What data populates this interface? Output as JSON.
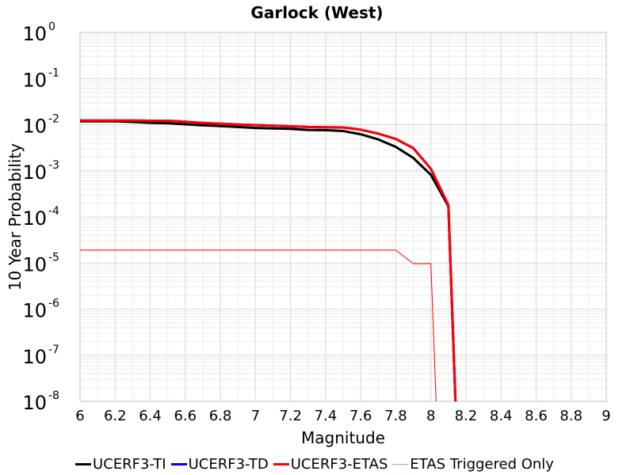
{
  "chart_data": {
    "type": "line",
    "title": "Garlock (West)",
    "xlabel": "Magnitude",
    "ylabel": "10 Year Probability",
    "xlim": [
      6,
      9
    ],
    "ylim_log10": [
      -8,
      0
    ],
    "yscale": "log",
    "grid": true,
    "legend_position": "bottom",
    "x_ticks": [
      "6",
      "6.2",
      "6.4",
      "6.6",
      "6.8",
      "7",
      "7.2",
      "7.4",
      "7.6",
      "7.8",
      "8",
      "8.2",
      "8.4",
      "8.6",
      "8.8",
      "9"
    ],
    "y_tick_exponents": [
      "0",
      "-1",
      "-2",
      "-3",
      "-4",
      "-5",
      "-6",
      "-7",
      "-8"
    ],
    "y_tick_base": "10",
    "series": [
      {
        "name": "UCERF3-TI",
        "color": "#000000",
        "width": 3,
        "points": [
          [
            6.0,
            0.0118
          ],
          [
            6.1,
            0.0118
          ],
          [
            6.2,
            0.0118
          ],
          [
            6.3,
            0.0115
          ],
          [
            6.4,
            0.011
          ],
          [
            6.5,
            0.0108
          ],
          [
            6.6,
            0.0102
          ],
          [
            6.7,
            0.0097
          ],
          [
            6.8,
            0.0093
          ],
          [
            6.9,
            0.0089
          ],
          [
            7.0,
            0.0085
          ],
          [
            7.1,
            0.0083
          ],
          [
            7.2,
            0.0081
          ],
          [
            7.3,
            0.0077
          ],
          [
            7.4,
            0.0076
          ],
          [
            7.5,
            0.0073
          ],
          [
            7.6,
            0.0062
          ],
          [
            7.7,
            0.0048
          ],
          [
            7.8,
            0.0033
          ],
          [
            7.9,
            0.0019
          ],
          [
            8.0,
            0.00082
          ],
          [
            8.1,
            0.00017
          ],
          [
            8.14,
            1e-08
          ]
        ]
      },
      {
        "name": "UCERF3-TD",
        "color": "#0000ff",
        "width": 3,
        "points": [
          [
            6.0,
            0.0123
          ],
          [
            6.1,
            0.0123
          ],
          [
            6.2,
            0.0123
          ],
          [
            6.3,
            0.0123
          ],
          [
            6.4,
            0.0122
          ],
          [
            6.5,
            0.0122
          ],
          [
            6.6,
            0.0116
          ],
          [
            6.7,
            0.0109
          ],
          [
            6.8,
            0.0105
          ],
          [
            6.9,
            0.0101
          ],
          [
            7.0,
            0.0098
          ],
          [
            7.1,
            0.0095
          ],
          [
            7.2,
            0.0092
          ],
          [
            7.3,
            0.0089
          ],
          [
            7.4,
            0.0088
          ],
          [
            7.5,
            0.0087
          ],
          [
            7.6,
            0.0078
          ],
          [
            7.7,
            0.0064
          ],
          [
            7.8,
            0.0049
          ],
          [
            7.9,
            0.0031
          ],
          [
            8.0,
            0.0011
          ],
          [
            8.1,
            0.00018
          ],
          [
            8.14,
            1e-08
          ]
        ]
      },
      {
        "name": "UCERF3-ETAS",
        "color": "#ff0000",
        "width": 3,
        "points": [
          [
            6.0,
            0.0123
          ],
          [
            6.1,
            0.0123
          ],
          [
            6.2,
            0.0123
          ],
          [
            6.3,
            0.0123
          ],
          [
            6.4,
            0.0122
          ],
          [
            6.5,
            0.0122
          ],
          [
            6.6,
            0.0116
          ],
          [
            6.7,
            0.0109
          ],
          [
            6.8,
            0.0105
          ],
          [
            6.9,
            0.0101
          ],
          [
            7.0,
            0.0098
          ],
          [
            7.1,
            0.0095
          ],
          [
            7.2,
            0.0092
          ],
          [
            7.3,
            0.0089
          ],
          [
            7.4,
            0.0088
          ],
          [
            7.5,
            0.0087
          ],
          [
            7.6,
            0.0078
          ],
          [
            7.7,
            0.0064
          ],
          [
            7.8,
            0.0049
          ],
          [
            7.9,
            0.0031
          ],
          [
            8.0,
            0.0011
          ],
          [
            8.1,
            0.00018
          ],
          [
            8.14,
            1e-08
          ]
        ]
      },
      {
        "name": "ETAS Triggered Only",
        "color": "#ff0000",
        "width": 1,
        "points": [
          [
            6.0,
            1.9e-05
          ],
          [
            7.8,
            1.9e-05
          ],
          [
            7.9,
            9.7e-06
          ],
          [
            8.0,
            9.7e-06
          ],
          [
            8.03,
            1e-08
          ]
        ]
      }
    ]
  }
}
